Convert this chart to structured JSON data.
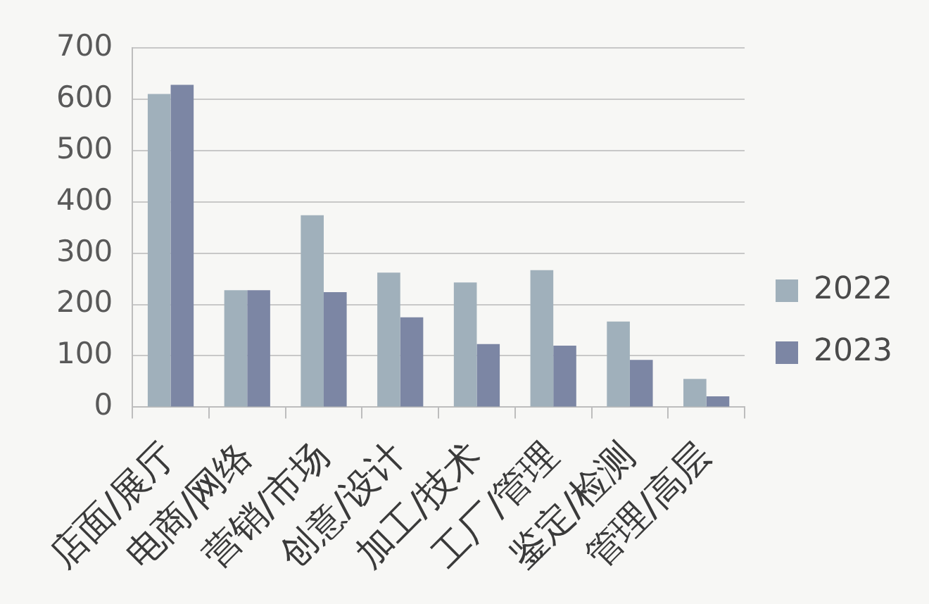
{
  "chart_data": {
    "type": "bar",
    "categories": [
      "店面/展厅",
      "电商/网络",
      "营销/市场",
      "创意/设计",
      "加工/技术",
      "工厂/管理",
      "鉴定/检测",
      "管理/高层"
    ],
    "series": [
      {
        "name": "2022",
        "color": "#a0b0bb",
        "values": [
          610,
          228,
          374,
          262,
          243,
          267,
          167,
          55
        ]
      },
      {
        "name": "2023",
        "color": "#7c86a4",
        "values": [
          628,
          228,
          224,
          175,
          123,
          120,
          92,
          21
        ]
      }
    ],
    "ylim": [
      0,
      700
    ],
    "yticks": [
      0,
      100,
      200,
      300,
      400,
      500,
      600,
      700
    ],
    "grid": "y",
    "legend": "right"
  }
}
